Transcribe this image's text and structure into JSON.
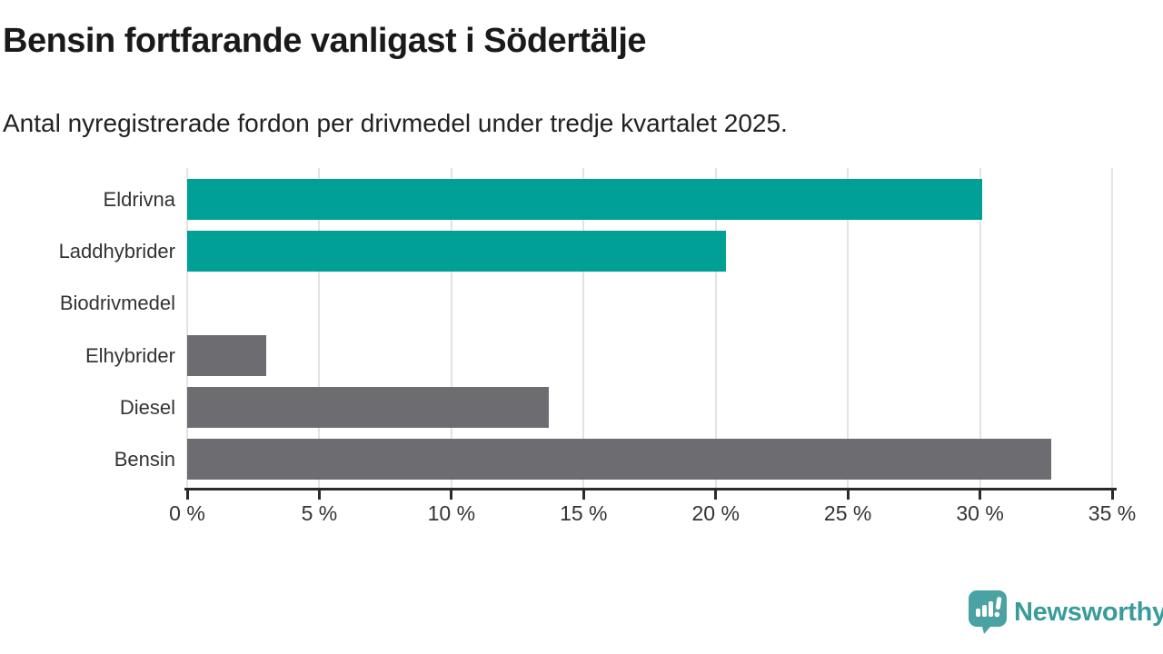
{
  "header": {
    "title": "Bensin fortfarande vanligast i Södertälje",
    "subtitle": "Antal nyregistrerade fordon per drivmedel under tredje kvartalet 2025."
  },
  "chart_data": {
    "type": "bar",
    "orientation": "horizontal",
    "title": "Bensin fortfarande vanligast i Södertälje",
    "subtitle": "Antal nyregistrerade fordon per drivmedel under tredje kvartalet 2025.",
    "categories": [
      "Eldrivna",
      "Laddhybrider",
      "Biodrivmedel",
      "Elhybrider",
      "Diesel",
      "Bensin"
    ],
    "values": [
      30.1,
      20.4,
      0,
      3.0,
      13.7,
      32.7
    ],
    "unit": "%",
    "bar_colors": [
      "#00a096",
      "#00a096",
      "#6c6c71",
      "#6c6c71",
      "#6c6c71",
      "#6c6c71"
    ],
    "xlim": [
      0,
      35
    ],
    "x_tick_labels": [
      "0 %",
      "5 %",
      "10 %",
      "15 %",
      "20 %",
      "25 %",
      "30 %",
      "35 %"
    ],
    "grid": true,
    "legend": "none"
  },
  "colors": {
    "electric_teal": "#00a096",
    "fossil_gray": "#6c6c71",
    "gridline": "#e3e3e3",
    "axis": "#2b2b2b",
    "brand_teal": "#3a9b9b",
    "logo_teal": "#4ba2a2"
  },
  "branding": {
    "name": "Newsworthy",
    "logo_icon": "newsworthy-speech-bubble-chart-icon"
  }
}
